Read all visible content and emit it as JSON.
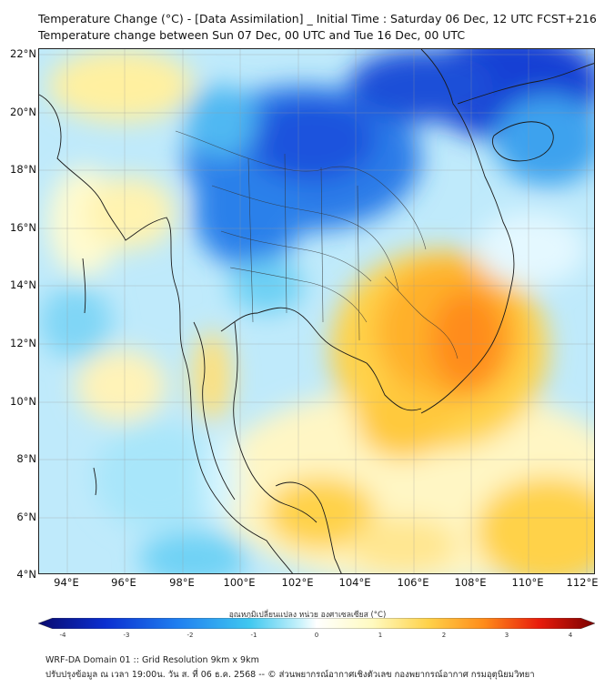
{
  "header": {
    "title_line1": "Temperature Change (°C) - [Data Assimilation] _ Initial Time : Saturday 06 Dec, 12 UTC FCST+216",
    "title_line2": "Temperature change between Sun 07 Dec, 00 UTC and Tue 16 Dec, 00 UTC"
  },
  "map": {
    "lat_labels": [
      "22°N",
      "20°N",
      "18°N",
      "16°N",
      "14°N",
      "12°N",
      "10°N",
      "8°N",
      "6°N",
      "4°N"
    ],
    "lon_labels": [
      "94°E",
      "96°E",
      "98°E",
      "100°E",
      "102°E",
      "104°E",
      "106°E",
      "108°E",
      "110°E",
      "112°E"
    ],
    "gridlines": true
  },
  "colorbar": {
    "title": "อุณหภูมิเปลี่ยนแปลง หน่วย องศาเซลเซียส (°C)",
    "ticks": [
      "-4",
      "-3",
      "-2",
      "-1",
      "0",
      "1",
      "2",
      "3",
      "4"
    ],
    "range": [
      -4,
      4
    ],
    "colors": [
      "#0a0a6e",
      "#0b2fd0",
      "#1f7ff0",
      "#40c8f0",
      "#c8f2fb",
      "#ffffff",
      "#fffac0",
      "#ffd24a",
      "#ff8c1a",
      "#e81c0c",
      "#7a0000"
    ]
  },
  "footer": {
    "line1": "WRF-DA Domain 01 :: Grid Resolution 9km x 9km",
    "line2": "ปรับปรุงข้อมูล ณ เวลา 19:00น. วัน ส. ที่ 06 ธ.ค. 2568 -- © ส่วนพยากรณ์อากาศเชิงตัวเลข กองพยากรณ์อากาศ กรมอุตุนิยมวิทยา"
  }
}
